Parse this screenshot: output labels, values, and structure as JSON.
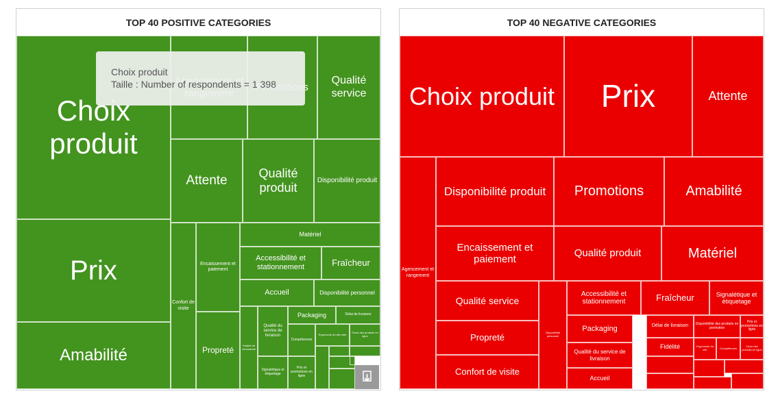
{
  "panels": [
    {
      "title": "TOP 40 POSITIVE CATEGORIES",
      "tiles": [
        {
          "label": "Choix produit"
        },
        {
          "label": "Prix"
        },
        {
          "label": "Amabilité"
        },
        {
          "label": "Agencement et rangement"
        },
        {
          "label": "Promotions"
        },
        {
          "label": "Qualité service"
        },
        {
          "label": "Attente"
        },
        {
          "label": "Qualité produit"
        },
        {
          "label": "Disponibilité produit"
        },
        {
          "label": "Confort de visite"
        },
        {
          "label": "Encaissement et paiement"
        },
        {
          "label": "Propreté"
        },
        {
          "label": "Matériel"
        },
        {
          "label": "Accessibilité et stationnement"
        },
        {
          "label": "Fraîcheur"
        },
        {
          "label": "Accueil"
        },
        {
          "label": "Disponibilité personnel"
        },
        {
          "label": "Facilité de commande"
        },
        {
          "label": "Qualité du service de livraison"
        },
        {
          "label": "Signalétique et étiquetage"
        },
        {
          "label": "Packaging"
        },
        {
          "label": "Délai de livraison"
        },
        {
          "label": "Compétences"
        },
        {
          "label": "Prix et promotions en ligne"
        },
        {
          "label": "Ergonomie du site web"
        },
        {
          "label": "Choix des produits en ligne"
        }
      ]
    },
    {
      "title": "TOP 40 NEGATIVE CATEGORIES",
      "tiles": [
        {
          "label": "Choix produit"
        },
        {
          "label": "Prix"
        },
        {
          "label": "Attente"
        },
        {
          "label": "Agencement et rangement"
        },
        {
          "label": "Disponibilité produit"
        },
        {
          "label": "Promotions"
        },
        {
          "label": "Amabilité"
        },
        {
          "label": "Encaissement et paiement"
        },
        {
          "label": "Qualité produit"
        },
        {
          "label": "Matériel"
        },
        {
          "label": "Qualité service"
        },
        {
          "label": "Propreté"
        },
        {
          "label": "Confort de visite"
        },
        {
          "label": "Disponibilité personnel"
        },
        {
          "label": "Accessibilité et stationnement"
        },
        {
          "label": "Fraîcheur"
        },
        {
          "label": "Signalétique et étiquetage"
        },
        {
          "label": "Packaging"
        },
        {
          "label": "Qualité du service de livraison"
        },
        {
          "label": "Accueil"
        },
        {
          "label": "Délai de livraison"
        },
        {
          "label": "Disponibilité des produits en promotion"
        },
        {
          "label": "Prix et promotions en ligne"
        },
        {
          "label": "Fidélité"
        },
        {
          "label": "Ergonomie du site"
        },
        {
          "label": "Compétences"
        },
        {
          "label": "Choix des produits en ligne"
        }
      ]
    }
  ],
  "tooltip": {
    "title": "Choix produit",
    "text": "Taille : Number of respondents = 1 398"
  }
}
